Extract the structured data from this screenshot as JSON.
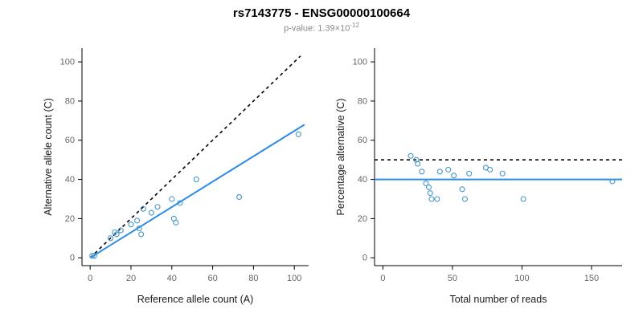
{
  "title": "rs7143775 - ENSG00000100664",
  "subtitle": {
    "p_label": "p-value: 1.39×10",
    "p_exponent": "-12"
  },
  "style": {
    "point_color": "#4697c9",
    "fit_line_color": "#2b8ce6",
    "reference_line_color": "#000000",
    "tick_label_color": "#666666",
    "axis_label_color": "#1a1a1a",
    "axis_color": "#000000"
  },
  "chart_data": [
    {
      "type": "scatter",
      "name": "allele-counts-scatter",
      "xlabel": "Reference allele count (A)",
      "ylabel": "Alternative allele count (C)",
      "xlim": [
        -4,
        107
      ],
      "ylim": [
        -4,
        107
      ],
      "xticks": [
        0,
        20,
        40,
        60,
        80,
        100
      ],
      "yticks": [
        0,
        20,
        40,
        60,
        80,
        100
      ],
      "points": [
        [
          1,
          1
        ],
        [
          2,
          1
        ],
        [
          10,
          10
        ],
        [
          12,
          13
        ],
        [
          13,
          12
        ],
        [
          15,
          14
        ],
        [
          20,
          17
        ],
        [
          23,
          19
        ],
        [
          24,
          15
        ],
        [
          25,
          12
        ],
        [
          26,
          25
        ],
        [
          30,
          23
        ],
        [
          33,
          26
        ],
        [
          40,
          30
        ],
        [
          41,
          20
        ],
        [
          42,
          18
        ],
        [
          44,
          28
        ],
        [
          52,
          40
        ],
        [
          73,
          31
        ],
        [
          102,
          63
        ]
      ],
      "lines": [
        {
          "name": "identity-line",
          "x1": 0,
          "y1": 0,
          "x2": 103,
          "y2": 103,
          "style": "dashed",
          "color_key": "reference_line_color"
        },
        {
          "name": "fit-line",
          "x1": 0,
          "y1": 0,
          "x2": 105,
          "y2": 68,
          "style": "solid",
          "color_key": "fit_line_color"
        }
      ]
    },
    {
      "type": "scatter",
      "name": "percentage-vs-reads-scatter",
      "xlabel": "Total number of reads",
      "ylabel": "Percentage alternative (C)",
      "xlim": [
        -6,
        172
      ],
      "ylim": [
        -4,
        107
      ],
      "xticks": [
        0,
        50,
        100,
        150
      ],
      "yticks": [
        0,
        20,
        40,
        60,
        80,
        100
      ],
      "points": [
        [
          20,
          52
        ],
        [
          24,
          50
        ],
        [
          25,
          48
        ],
        [
          28,
          44
        ],
        [
          31,
          38
        ],
        [
          33,
          36
        ],
        [
          34,
          33
        ],
        [
          35,
          30
        ],
        [
          39,
          30
        ],
        [
          41,
          44
        ],
        [
          47,
          45
        ],
        [
          51,
          42
        ],
        [
          57,
          35
        ],
        [
          59,
          30
        ],
        [
          62,
          43
        ],
        [
          74,
          46
        ],
        [
          77,
          45
        ],
        [
          86,
          43
        ],
        [
          101,
          30
        ],
        [
          165,
          39
        ]
      ],
      "lines": [
        {
          "name": "fifty-percent-line",
          "x1": -6,
          "y1": 50,
          "x2": 172,
          "y2": 50,
          "style": "dashed",
          "color_key": "reference_line_color"
        },
        {
          "name": "fit-line",
          "x1": -6,
          "y1": 40,
          "x2": 172,
          "y2": 40,
          "style": "solid",
          "color_key": "fit_line_color"
        }
      ]
    }
  ]
}
